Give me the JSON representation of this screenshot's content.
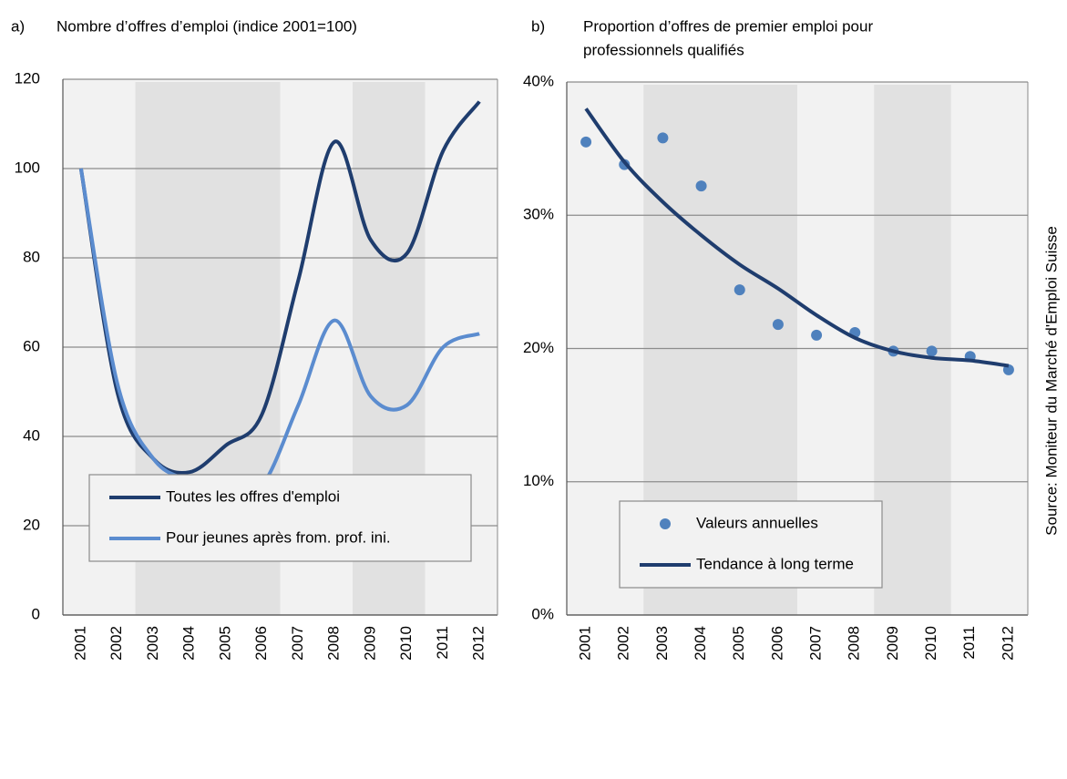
{
  "source": "Source: Moniteur du Marché d'Emploi Suisse",
  "chart_data": [
    {
      "type": "line",
      "label": "a)",
      "title": [
        "Nombre d’offres d’emploi (indice 2001=100)"
      ],
      "categories": [
        "2001",
        "2002",
        "2003",
        "2004",
        "2005",
        "2006",
        "2007",
        "2008",
        "2009",
        "2010",
        "2011",
        "2012"
      ],
      "series": [
        {
          "name": "Toutes les offres d'emploi",
          "color": "#1f3d6e",
          "values": [
            100,
            50,
            35,
            32,
            38,
            45,
            75,
            106,
            84,
            81,
            104,
            115
          ]
        },
        {
          "name": "Pour jeunes après from. prof. ini.",
          "color": "#5b8ccf",
          "values": [
            100,
            52,
            35,
            30,
            27,
            29,
            47,
            66,
            49,
            47,
            60,
            63
          ]
        }
      ],
      "shaded_periods": [
        {
          "from": "2003",
          "to": "2006"
        },
        {
          "from": "2009",
          "to": "2010"
        }
      ],
      "ylim": [
        0,
        120
      ],
      "yticks": [
        0,
        20,
        40,
        60,
        80,
        100,
        120
      ],
      "grid": true,
      "legend": "lower center"
    },
    {
      "type": "scatter",
      "label": "b)",
      "title": [
        "Proportion d’offres de premier emploi pour",
        "professionnels qualifiés"
      ],
      "categories": [
        "2001",
        "2002",
        "2003",
        "2004",
        "2005",
        "2006",
        "2007",
        "2008",
        "2009",
        "2010",
        "2011",
        "2012"
      ],
      "series": [
        {
          "name": "Valeurs annuelles",
          "mode": "markers",
          "color": "#4f81bd",
          "values": [
            35.5,
            33.8,
            35.8,
            32.2,
            24.4,
            21.8,
            21.0,
            21.2,
            19.8,
            19.8,
            19.4,
            18.4
          ]
        },
        {
          "name": "Tendance à long terme",
          "mode": "line",
          "color": "#1f3d6e",
          "values": [
            38,
            34,
            31,
            28.5,
            26.3,
            24.5,
            22.5,
            20.8,
            19.8,
            19.3,
            19.1,
            18.7
          ]
        }
      ],
      "shaded_periods": [
        {
          "from": "2003",
          "to": "2006"
        },
        {
          "from": "2009",
          "to": "2010"
        }
      ],
      "ylim": [
        0,
        40
      ],
      "yticks": [
        {
          "value": 0,
          "label": "0%"
        },
        {
          "value": 10,
          "label": "10%"
        },
        {
          "value": 20,
          "label": "20%"
        },
        {
          "value": 30,
          "label": "30%"
        },
        {
          "value": 40,
          "label": "40%"
        }
      ],
      "grid": true,
      "legend": "lower left"
    }
  ]
}
